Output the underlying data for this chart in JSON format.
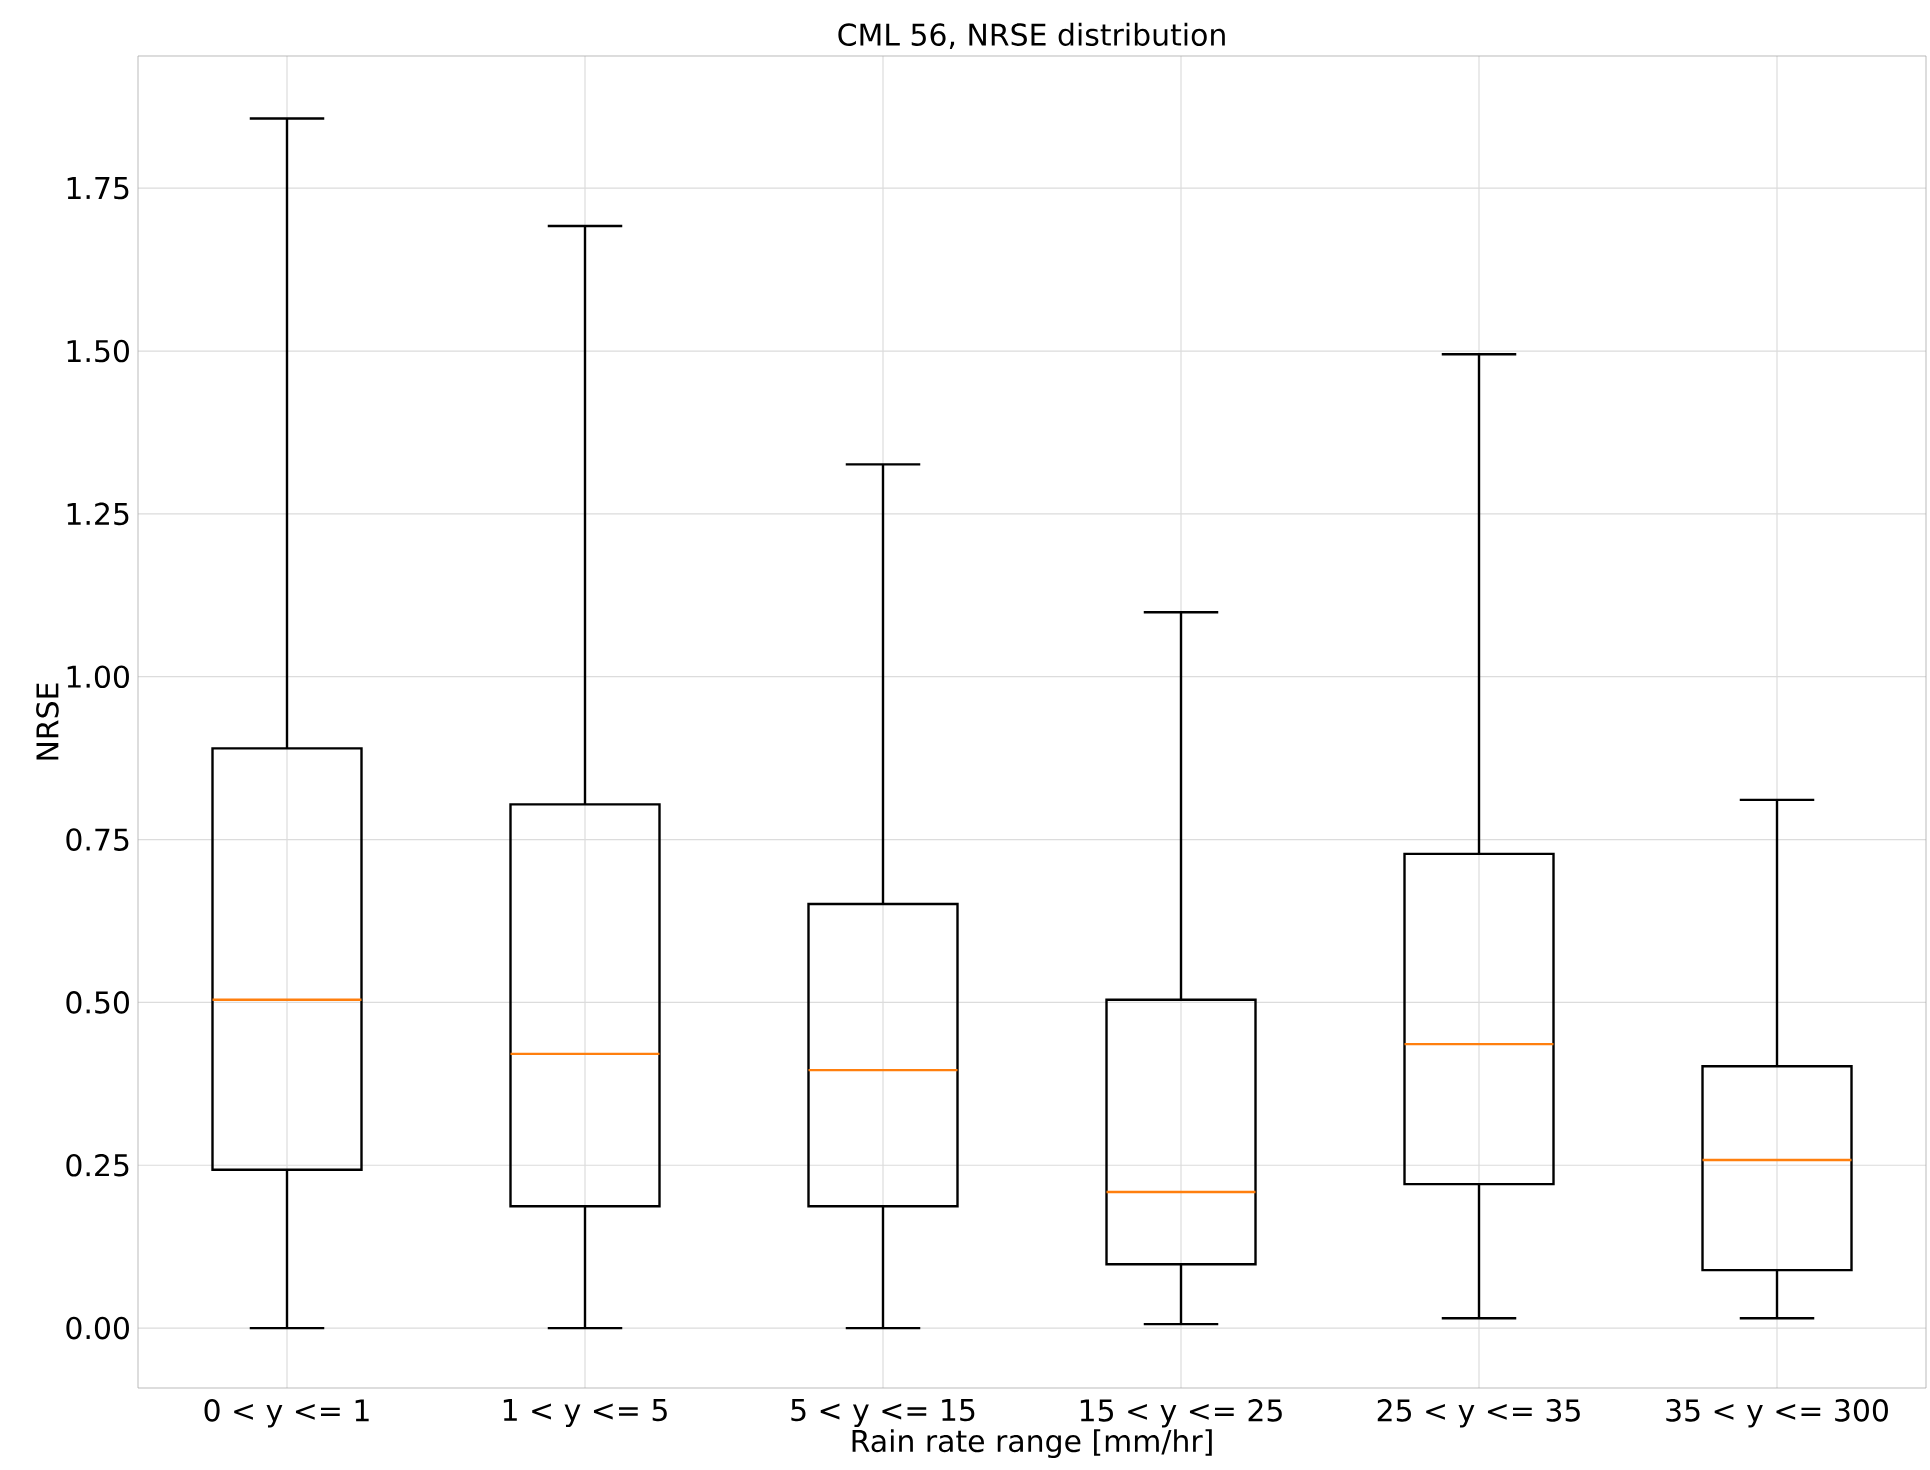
{
  "chart_data": {
    "type": "box",
    "title": "CML 56, NRSE distribution",
    "xlabel": "Rain rate range [mm/hr]",
    "ylabel": "NRSE",
    "categories": [
      "0 < y <= 1",
      "1 < y <= 5",
      "5 < y <= 15",
      "15 < y <= 25",
      "25 < y <= 35",
      "35 < y <= 300"
    ],
    "boxes": [
      {
        "low": 0.0,
        "q1": 0.243,
        "median": 0.504,
        "q3": 0.89,
        "high": 1.857
      },
      {
        "low": 0.0,
        "q1": 0.187,
        "median": 0.421,
        "q3": 0.804,
        "high": 1.692
      },
      {
        "low": 0.0,
        "q1": 0.187,
        "median": 0.396,
        "q3": 0.651,
        "high": 1.326
      },
      {
        "low": 0.006,
        "q1": 0.098,
        "median": 0.209,
        "q3": 0.504,
        "high": 1.099
      },
      {
        "low": 0.015,
        "q1": 0.221,
        "median": 0.436,
        "q3": 0.728,
        "high": 1.495
      },
      {
        "low": 0.015,
        "q1": 0.089,
        "median": 0.258,
        "q3": 0.402,
        "high": 0.811
      }
    ],
    "color": "#000000",
    "ylim": [
      -0.092,
      1.953
    ],
    "yticks": [
      {
        "value": 0,
        "label": "0.00"
      },
      {
        "value": 0.25,
        "label": "0.25"
      },
      {
        "value": 0.5,
        "label": "0.50"
      },
      {
        "value": 0.75,
        "label": "0.75"
      },
      {
        "value": 1.0,
        "label": "1.00"
      },
      {
        "value": 1.25,
        "label": "1.25"
      },
      {
        "value": 1.5,
        "label": "1.50"
      },
      {
        "value": 1.75,
        "label": "1.75"
      }
    ],
    "grid": true
  }
}
